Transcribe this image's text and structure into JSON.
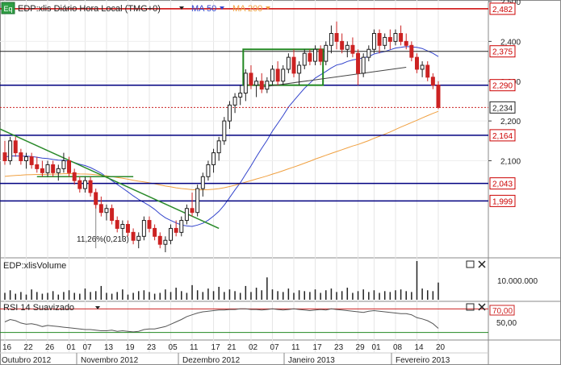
{
  "header": {
    "eq_icon": "Eq",
    "title": "EDP:xlis Diário Hora Local (TMG+0)",
    "ma50_label": "MA 50",
    "ma200_label": "MA 200",
    "ma50_color": "#3344cc",
    "ma200_color": "#f0a040",
    "dropdown_icon": "triangle-down-icon"
  },
  "panels": {
    "volume_title": "EDP:xlisVolume",
    "volume_tick": "10.000.000",
    "rsi_title": "RSI 14 Suavizado",
    "rsi_ticks": [
      "70,00",
      "50,00"
    ],
    "panel_icons": [
      "maximize-icon",
      "close-icon"
    ]
  },
  "colors": {
    "up": "#1f1f1f",
    "down": "#cc2222",
    "level_blue": "#000080",
    "resistance_red": "#cc0000",
    "trend_green": "#2a8a2a",
    "box_green": "#228822"
  },
  "chart_data": {
    "type": "candlestick",
    "ylim": [
      1.86,
      2.5
    ],
    "price_ticks": [
      "2,500",
      "2,400",
      "2,300",
      "2,200",
      "2,100"
    ],
    "level_labels": [
      {
        "label": "2,482",
        "value": 2.482,
        "style": "red"
      },
      {
        "label": "2,375",
        "value": 2.375,
        "style": "black"
      },
      {
        "label": "2,290",
        "value": 2.29,
        "style": "blue"
      },
      {
        "label": "2,234",
        "value": 2.234,
        "style": "current"
      },
      {
        "label": "2,164",
        "value": 2.164,
        "style": "blue"
      },
      {
        "label": "2,043",
        "value": 2.043,
        "style": "blue"
      },
      {
        "label": "1,999",
        "value": 1.999,
        "style": "blue"
      }
    ],
    "annotation": "11,26%(0,213)",
    "x_tick_labels": [
      "16",
      "22",
      "26",
      "01",
      "07",
      "13",
      "19",
      "23",
      "05",
      "11",
      "17",
      "21",
      "02",
      "07",
      "11",
      "17",
      "23",
      "29",
      "01",
      "08",
      "14",
      "20"
    ],
    "month_labels": [
      "Outubro 2012",
      "Novembro 2012",
      "Dezembro 2012",
      "Janeiro 2013",
      "Fevereiro 2013"
    ],
    "candles": [
      [
        2.12,
        2.15,
        2.09,
        2.1
      ],
      [
        2.1,
        2.16,
        2.09,
        2.15
      ],
      [
        2.15,
        2.16,
        2.11,
        2.12
      ],
      [
        2.12,
        2.13,
        2.09,
        2.1
      ],
      [
        2.1,
        2.12,
        2.08,
        2.11
      ],
      [
        2.11,
        2.12,
        2.08,
        2.09
      ],
      [
        2.09,
        2.11,
        2.07,
        2.08
      ],
      [
        2.08,
        2.1,
        2.06,
        2.07
      ],
      [
        2.07,
        2.1,
        2.06,
        2.09
      ],
      [
        2.09,
        2.1,
        2.06,
        2.07
      ],
      [
        2.07,
        2.09,
        2.05,
        2.08
      ],
      [
        2.08,
        2.12,
        2.07,
        2.1
      ],
      [
        2.1,
        2.11,
        2.06,
        2.07
      ],
      [
        2.07,
        2.08,
        2.04,
        2.05
      ],
      [
        2.05,
        2.06,
        2.02,
        2.03
      ],
      [
        2.03,
        2.06,
        2.02,
        2.05
      ],
      [
        2.05,
        2.06,
        2.01,
        2.02
      ],
      [
        2.02,
        2.03,
        1.98,
        1.99
      ],
      [
        1.99,
        2.01,
        1.96,
        1.97
      ],
      [
        1.97,
        1.99,
        1.95,
        1.98
      ],
      [
        1.98,
        1.99,
        1.94,
        1.95
      ],
      [
        1.95,
        1.96,
        1.92,
        1.93
      ],
      [
        1.93,
        1.95,
        1.9,
        1.94
      ],
      [
        1.94,
        1.95,
        1.91,
        1.92
      ],
      [
        1.92,
        1.93,
        1.89,
        1.9
      ],
      [
        1.9,
        1.92,
        1.88,
        1.91
      ],
      [
        1.91,
        1.96,
        1.9,
        1.95
      ],
      [
        1.95,
        1.96,
        1.92,
        1.93
      ],
      [
        1.93,
        1.94,
        1.9,
        1.91
      ],
      [
        1.91,
        1.92,
        1.88,
        1.89
      ],
      [
        1.89,
        1.91,
        1.87,
        1.9
      ],
      [
        1.9,
        1.94,
        1.89,
        1.93
      ],
      [
        1.93,
        1.95,
        1.91,
        1.92
      ],
      [
        1.92,
        1.96,
        1.91,
        1.95
      ],
      [
        1.95,
        1.99,
        1.94,
        1.98
      ],
      [
        1.98,
        2.02,
        1.96,
        1.97
      ],
      [
        1.97,
        2.04,
        1.96,
        2.03
      ],
      [
        2.03,
        2.07,
        2.01,
        2.06
      ],
      [
        2.06,
        2.1,
        2.05,
        2.09
      ],
      [
        2.09,
        2.13,
        2.07,
        2.12
      ],
      [
        2.12,
        2.16,
        2.1,
        2.15
      ],
      [
        2.15,
        2.21,
        2.14,
        2.2
      ],
      [
        2.2,
        2.25,
        2.18,
        2.24
      ],
      [
        2.24,
        2.27,
        2.22,
        2.26
      ],
      [
        2.26,
        2.29,
        2.24,
        2.27
      ],
      [
        2.27,
        2.33,
        2.25,
        2.32
      ],
      [
        2.32,
        2.34,
        2.28,
        2.29
      ],
      [
        2.29,
        2.31,
        2.26,
        2.3
      ],
      [
        2.3,
        2.32,
        2.27,
        2.28
      ],
      [
        2.28,
        2.31,
        2.27,
        2.3
      ],
      [
        2.3,
        2.34,
        2.29,
        2.33
      ],
      [
        2.33,
        2.35,
        2.29,
        2.3
      ],
      [
        2.3,
        2.34,
        2.29,
        2.33
      ],
      [
        2.33,
        2.37,
        2.32,
        2.36
      ],
      [
        2.36,
        2.38,
        2.31,
        2.32
      ],
      [
        2.32,
        2.35,
        2.29,
        2.34
      ],
      [
        2.34,
        2.38,
        2.33,
        2.37
      ],
      [
        2.37,
        2.38,
        2.34,
        2.35
      ],
      [
        2.35,
        2.39,
        2.34,
        2.38
      ],
      [
        2.38,
        2.39,
        2.34,
        2.35
      ],
      [
        2.35,
        2.4,
        2.34,
        2.39
      ],
      [
        2.39,
        2.44,
        2.37,
        2.42
      ],
      [
        2.42,
        2.45,
        2.38,
        2.4
      ],
      [
        2.4,
        2.42,
        2.37,
        2.38
      ],
      [
        2.38,
        2.4,
        2.36,
        2.39
      ],
      [
        2.39,
        2.41,
        2.36,
        2.37
      ],
      [
        2.37,
        2.38,
        2.29,
        2.32
      ],
      [
        2.32,
        2.37,
        2.31,
        2.36
      ],
      [
        2.36,
        2.39,
        2.35,
        2.38
      ],
      [
        2.38,
        2.43,
        2.37,
        2.42
      ],
      [
        2.42,
        2.43,
        2.37,
        2.39
      ],
      [
        2.39,
        2.42,
        2.38,
        2.41
      ],
      [
        2.41,
        2.43,
        2.38,
        2.4
      ],
      [
        2.4,
        2.43,
        2.39,
        2.42
      ],
      [
        2.42,
        2.44,
        2.39,
        2.4
      ],
      [
        2.4,
        2.42,
        2.38,
        2.39
      ],
      [
        2.39,
        2.4,
        2.35,
        2.36
      ],
      [
        2.36,
        2.37,
        2.32,
        2.33
      ],
      [
        2.33,
        2.35,
        2.31,
        2.34
      ],
      [
        2.34,
        2.35,
        2.3,
        2.31
      ],
      [
        2.31,
        2.32,
        2.28,
        2.29
      ],
      [
        2.29,
        2.3,
        2.23,
        2.234
      ]
    ],
    "volume_series": [
      0.8,
      1.1,
      0.7,
      0.9,
      0.6,
      1.2,
      0.9,
      0.7,
      0.8,
      1.0,
      0.6,
      0.9,
      1.1,
      0.8,
      0.7,
      1.3,
      0.9,
      1.0,
      1.6,
      0.8,
      0.7,
      0.9,
      1.2,
      0.6,
      0.8,
      1.0,
      1.1,
      0.9,
      0.7,
      0.8,
      1.2,
      0.9,
      1.4,
      1.0,
      0.8,
      1.7,
      1.1,
      0.9,
      1.3,
      1.0,
      1.5,
      0.9,
      1.2,
      1.0,
      0.8,
      1.6,
      0.9,
      1.4,
      1.1,
      2.6,
      1.2,
      1.0,
      0.9,
      1.3,
      0.8,
      1.1,
      1.0,
      0.9,
      1.2,
      0.8,
      1.1,
      1.3,
      0.9,
      1.0,
      1.4,
      0.8,
      1.0,
      1.2,
      0.9,
      1.1,
      0.8,
      1.0,
      0.9,
      1.1,
      1.2,
      1.0,
      0.9,
      4.5,
      1.3,
      1.1,
      1.0,
      2.0
    ],
    "rsi_series": [
      48,
      52,
      50,
      46,
      44,
      45,
      43,
      40,
      42,
      41,
      40,
      39,
      38,
      37,
      36,
      35,
      35,
      34,
      33,
      33,
      34,
      32,
      33,
      32,
      31,
      32,
      35,
      36,
      36,
      38,
      40,
      44,
      48,
      52,
      57,
      60,
      63,
      65,
      66,
      67,
      68,
      68,
      69,
      69,
      70,
      70,
      69,
      69,
      68,
      69,
      70,
      69,
      68,
      69,
      70,
      69,
      68,
      67,
      68,
      69,
      68,
      70,
      69,
      68,
      67,
      66,
      65,
      64,
      66,
      67,
      66,
      65,
      64,
      63,
      62,
      62,
      60,
      55,
      53,
      50,
      45,
      37
    ]
  }
}
